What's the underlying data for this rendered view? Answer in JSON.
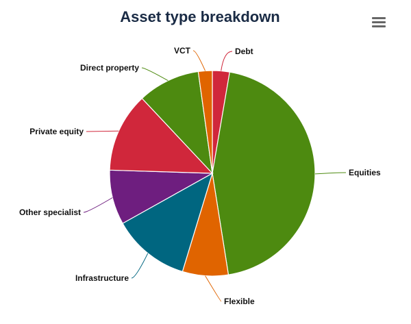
{
  "title": "Asset type breakdown",
  "menu": {
    "icon": "hamburger-menu-icon"
  },
  "chart_data": {
    "type": "pie",
    "title": "Asset type breakdown",
    "slices": [
      {
        "label": "Debt",
        "value": 2.7,
        "color": "#d0273b"
      },
      {
        "label": "Equities",
        "value": 44.8,
        "color": "#4d8a10"
      },
      {
        "label": "Flexible",
        "value": 7.2,
        "color": "#e06400"
      },
      {
        "label": "Infrastructure",
        "value": 12.2,
        "color": "#006680"
      },
      {
        "label": "Other specialist",
        "value": 8.6,
        "color": "#6e1e7f"
      },
      {
        "label": "Private equity",
        "value": 12.5,
        "color": "#d0273b"
      },
      {
        "label": "Direct property",
        "value": 9.8,
        "color": "#4d8a10"
      },
      {
        "label": "VCT",
        "value": 2.2,
        "color": "#e06400"
      }
    ]
  }
}
